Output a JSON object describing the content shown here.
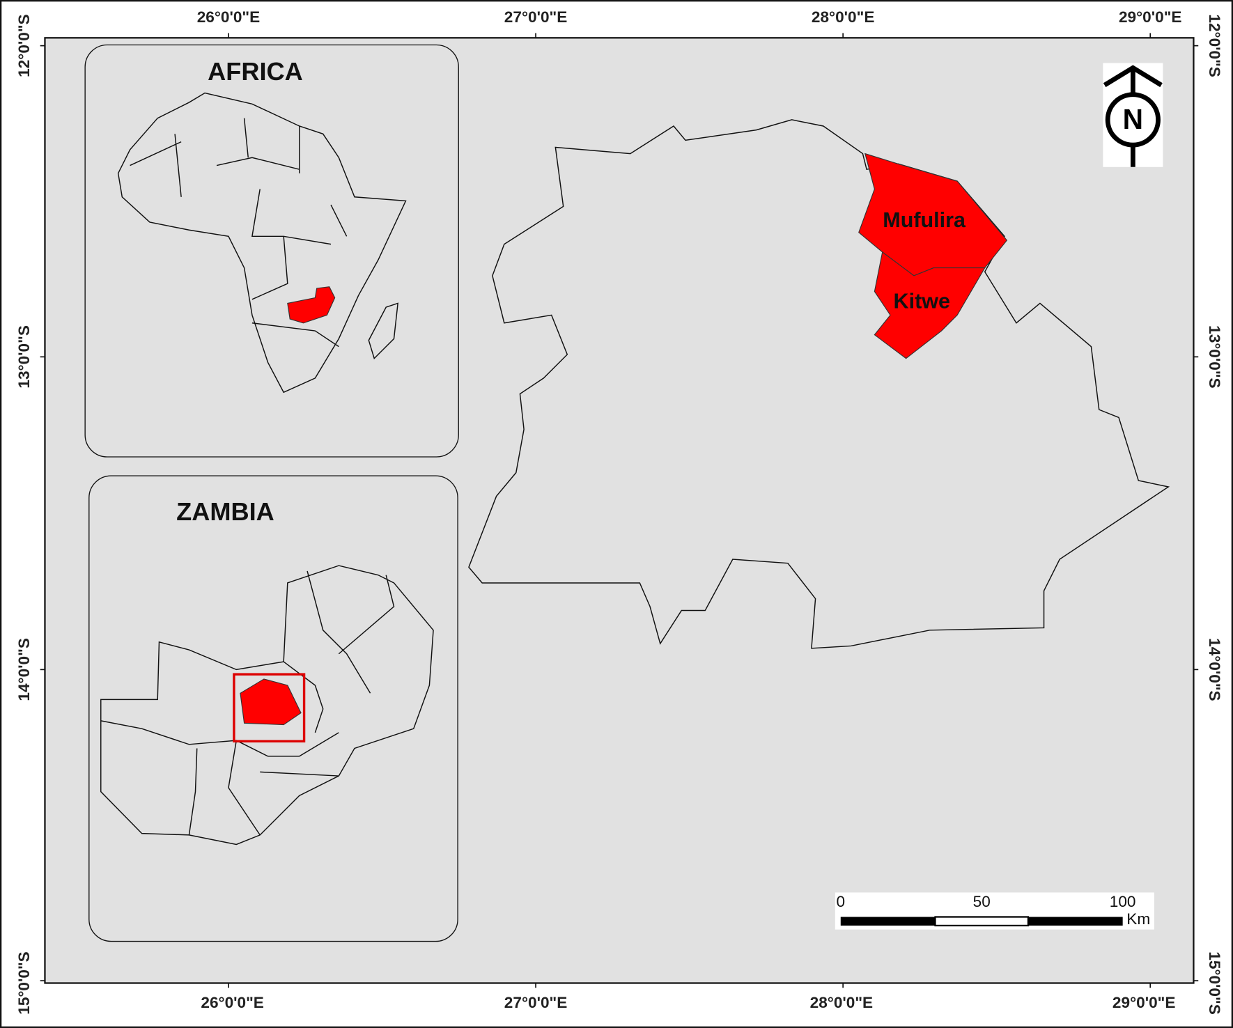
{
  "map": {
    "insets": [
      {
        "title": "AFRICA"
      },
      {
        "title": "ZAMBIA"
      }
    ],
    "districts": [
      {
        "name": "Mufulira"
      },
      {
        "name": "Kitwe"
      }
    ],
    "north_arrow": "N",
    "longitude_labels": [
      "26°0'0\"E",
      "27°0'0\"E",
      "28°0'0\"E",
      "29°0'0\"E"
    ],
    "latitude_labels": [
      "12°0'0\"S",
      "13°0'0\"S",
      "14°0'0\"S",
      "15°0'0\"S"
    ],
    "scale_bar": {
      "labels": [
        "0",
        "50",
        "100"
      ],
      "unit": "Km"
    }
  }
}
